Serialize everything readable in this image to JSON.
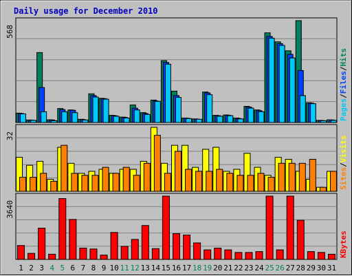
{
  "chart_data": {
    "type": "bar",
    "title": "Daily usage for December 2010",
    "categories": [
      "1",
      "2",
      "3",
      "4",
      "5",
      "6",
      "7",
      "8",
      "9",
      "10",
      "11",
      "12",
      "13",
      "14",
      "15",
      "16",
      "17",
      "18",
      "19",
      "20",
      "21",
      "22",
      "23",
      "24",
      "25",
      "26",
      "27",
      "28",
      "29",
      "30",
      "31"
    ],
    "weekend_days": [
      "4",
      "5",
      "11",
      "12",
      "18",
      "19",
      "25",
      "26"
    ],
    "panels": [
      {
        "name": "hits-files-pages",
        "ymax": 568,
        "ymax_label": "568",
        "legend": [
          {
            "label": "Pages",
            "color": "#00c8f8"
          },
          {
            "label": "/",
            "color": "#000000"
          },
          {
            "label": "Files",
            "color": "#0040ff"
          },
          {
            "label": "/",
            "color": "#000000"
          },
          {
            "label": "Hits",
            "color": "#00805c"
          }
        ],
        "series": [
          {
            "name": "Hits",
            "color": "#00805c",
            "values": [
              52,
              14,
              390,
              15,
              78,
              70,
              18,
              160,
              135,
              40,
              30,
              98,
              55,
              125,
              345,
              175,
              25,
              20,
              170,
              40,
              42,
              25,
              90,
              70,
              500,
              450,
              400,
              568,
              110,
              12,
              15
            ]
          },
          {
            "name": "Files",
            "color": "#0040ff",
            "values": [
              50,
              13,
              195,
              14,
              72,
              68,
              16,
              150,
              133,
              38,
              28,
              80,
              50,
              120,
              335,
              150,
              24,
              19,
              165,
              38,
              40,
              22,
              86,
              66,
              480,
              440,
              380,
              290,
              108,
              11,
              14
            ]
          },
          {
            "name": "Pages",
            "color": "#00c8f8",
            "values": [
              48,
              12,
              60,
              10,
              60,
              55,
              14,
              142,
              130,
              35,
              25,
              70,
              45,
              118,
              325,
              140,
              22,
              18,
              155,
              35,
              38,
              20,
              80,
              60,
              470,
              430,
              360,
              150,
              105,
              10,
              12
            ]
          }
        ]
      },
      {
        "name": "visits-sites",
        "ymax": 32,
        "ymax_label": "32",
        "legend": [
          {
            "label": "Sites",
            "color": "#ff8000"
          },
          {
            "label": "/",
            "color": "#000000"
          },
          {
            "label": "Visits",
            "color": "#ffff00"
          }
        ],
        "series": [
          {
            "name": "Visits",
            "color": "#ffff00",
            "values": [
              17,
              13,
              15,
              6,
              22,
              14,
              9,
              10,
              11,
              9,
              11,
              11,
              15,
              32,
              14,
              23,
              23,
              12,
              21,
              22,
              10,
              11,
              19,
              12,
              8,
              17,
              16,
              10,
              6,
              2,
              10
            ]
          },
          {
            "name": "Sites",
            "color": "#ff8000",
            "values": [
              7,
              7,
              9,
              5,
              23,
              9,
              8,
              8,
              12,
              9,
              12,
              8,
              14,
              28,
              9,
              20,
              11,
              10,
              10,
              11,
              9,
              8,
              8,
              9,
              7,
              14,
              14,
              14,
              16,
              2,
              10
            ]
          }
        ]
      },
      {
        "name": "kbytes",
        "ymax": 3640,
        "ymax_label": "3640",
        "legend": [
          {
            "label": "KBytes",
            "color": "#ff0000"
          }
        ],
        "series": [
          {
            "name": "KBytes",
            "color": "#ff0000",
            "values": [
              800,
              350,
              1800,
              300,
              3500,
              2300,
              650,
              600,
              250,
              1550,
              750,
              1150,
              1950,
              620,
              3640,
              1480,
              1400,
              950,
              550,
              650,
              550,
              400,
              400,
              450,
              3640,
              550,
              3640,
              2250,
              450,
              400,
              300
            ]
          }
        ]
      }
    ]
  }
}
